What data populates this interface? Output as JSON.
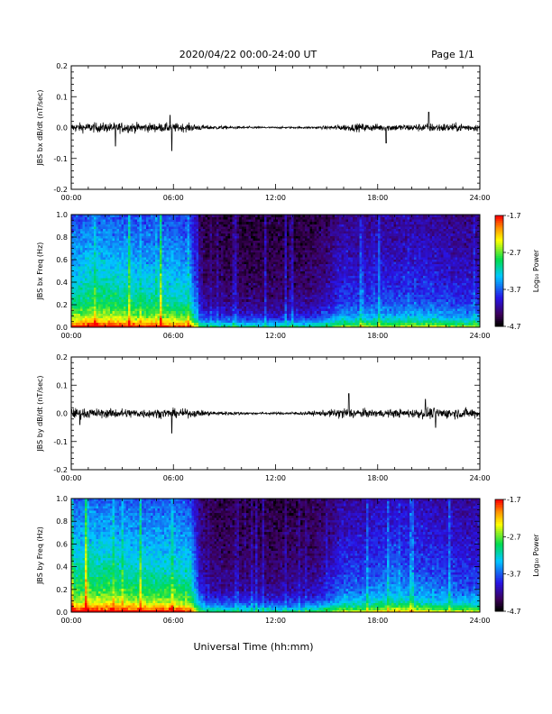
{
  "header": {
    "title": "2020/04/22  00:00-24:00 UT",
    "page": "Page 1/1"
  },
  "xlabel": "Universal Time (hh:mm)",
  "colorbar": {
    "label": "Log₁₀ Power",
    "ticks": [
      "-1.7",
      "-2.7",
      "-3.7",
      "-4.7"
    ],
    "range": [
      -4.7,
      -1.7
    ]
  },
  "chart_data": [
    {
      "type": "line",
      "id": "bx-ts",
      "ylabel": "JBS bx dB/dt (nT/sec)",
      "ylim": [
        -0.2,
        0.2
      ],
      "yticks": [
        "0.2",
        "0.1",
        "0.0",
        "-0.1",
        "-0.2"
      ],
      "xlim": [
        0,
        24
      ],
      "xticks": [
        "00:00",
        "06:00",
        "12:00",
        "18:00",
        "24:00"
      ],
      "amplitude_profile": {
        "hours": [
          0,
          1,
          2,
          3,
          4,
          5,
          6,
          7,
          8,
          9,
          10,
          11,
          12,
          13,
          14,
          15,
          16,
          17,
          18,
          19,
          20,
          21,
          22,
          23,
          24
        ],
        "half_amplitude": [
          0.02,
          0.022,
          0.022,
          0.024,
          0.021,
          0.02,
          0.02,
          0.018,
          0.01,
          0.008,
          0.006,
          0.005,
          0.004,
          0.004,
          0.005,
          0.008,
          0.015,
          0.018,
          0.016,
          0.015,
          0.016,
          0.02,
          0.02,
          0.018,
          0.016
        ]
      },
      "spikes": [
        {
          "hour": 2.6,
          "value": -0.06
        },
        {
          "hour": 5.9,
          "value": -0.075
        },
        {
          "hour": 5.8,
          "value": 0.04
        },
        {
          "hour": 21.0,
          "value": 0.05
        },
        {
          "hour": 18.5,
          "value": -0.05
        }
      ]
    },
    {
      "type": "heatmap",
      "id": "bx-spec",
      "ylabel": "JBS bx Freq (Hz)",
      "ylim": [
        0.0,
        1.0
      ],
      "yticks": [
        "1.0",
        "0.8",
        "0.6",
        "0.4",
        "0.2",
        "0.0"
      ],
      "xlim": [
        0,
        24
      ],
      "xticks": [
        "00:00",
        "06:00",
        "12:00",
        "18:00",
        "24:00"
      ],
      "zlim": [
        -4.7,
        -1.7
      ],
      "activity_profile": {
        "hours": [
          0,
          1,
          2,
          3,
          4,
          5,
          6,
          7,
          7.5,
          8,
          10,
          12,
          14,
          15,
          16,
          17,
          18,
          19,
          20,
          21,
          22,
          23,
          24
        ],
        "level": [
          0.55,
          0.6,
          0.6,
          0.58,
          0.55,
          0.55,
          0.55,
          0.5,
          0.2,
          0.12,
          0.1,
          0.1,
          0.12,
          0.18,
          0.28,
          0.26,
          0.3,
          0.28,
          0.3,
          0.3,
          0.28,
          0.25,
          0.25
        ]
      }
    },
    {
      "type": "line",
      "id": "by-ts",
      "ylabel": "JBS by dB/dt (nT/sec)",
      "ylim": [
        -0.2,
        0.2
      ],
      "yticks": [
        "0.2",
        "0.1",
        "0.0",
        "-0.1",
        "-0.2"
      ],
      "xlim": [
        0,
        24
      ],
      "xticks": [
        "00:00",
        "06:00",
        "12:00",
        "18:00",
        "24:00"
      ],
      "amplitude_profile": {
        "hours": [
          0,
          1,
          2,
          3,
          4,
          5,
          6,
          7,
          8,
          9,
          10,
          11,
          12,
          13,
          14,
          15,
          16,
          17,
          18,
          19,
          20,
          21,
          22,
          23,
          24
        ],
        "half_amplitude": [
          0.025,
          0.025,
          0.022,
          0.025,
          0.022,
          0.022,
          0.022,
          0.02,
          0.012,
          0.01,
          0.008,
          0.006,
          0.006,
          0.008,
          0.01,
          0.015,
          0.03,
          0.022,
          0.018,
          0.02,
          0.022,
          0.028,
          0.025,
          0.025,
          0.025
        ]
      },
      "spikes": [
        {
          "hour": 5.9,
          "value": -0.07
        },
        {
          "hour": 16.3,
          "value": 0.07
        },
        {
          "hour": 20.8,
          "value": 0.05
        },
        {
          "hour": 21.4,
          "value": -0.05
        },
        {
          "hour": 0.5,
          "value": -0.04
        }
      ]
    },
    {
      "type": "heatmap",
      "id": "by-spec",
      "ylabel": "JBS by Freq (Hz)",
      "ylim": [
        0.0,
        1.0
      ],
      "yticks": [
        "1.0",
        "0.8",
        "0.6",
        "0.4",
        "0.2",
        "0.0"
      ],
      "xlim": [
        0,
        24
      ],
      "xticks": [
        "00:00",
        "06:00",
        "12:00",
        "18:00",
        "24:00"
      ],
      "zlim": [
        -4.7,
        -1.7
      ],
      "activity_profile": {
        "hours": [
          0,
          1,
          2,
          3,
          4,
          5,
          6,
          7,
          7.5,
          8,
          10,
          12,
          14,
          15,
          16,
          17,
          18,
          19,
          20,
          21,
          22,
          23,
          24
        ],
        "level": [
          0.6,
          0.62,
          0.62,
          0.6,
          0.58,
          0.58,
          0.58,
          0.55,
          0.25,
          0.15,
          0.12,
          0.12,
          0.14,
          0.2,
          0.32,
          0.3,
          0.35,
          0.38,
          0.35,
          0.34,
          0.32,
          0.3,
          0.3
        ]
      }
    }
  ]
}
